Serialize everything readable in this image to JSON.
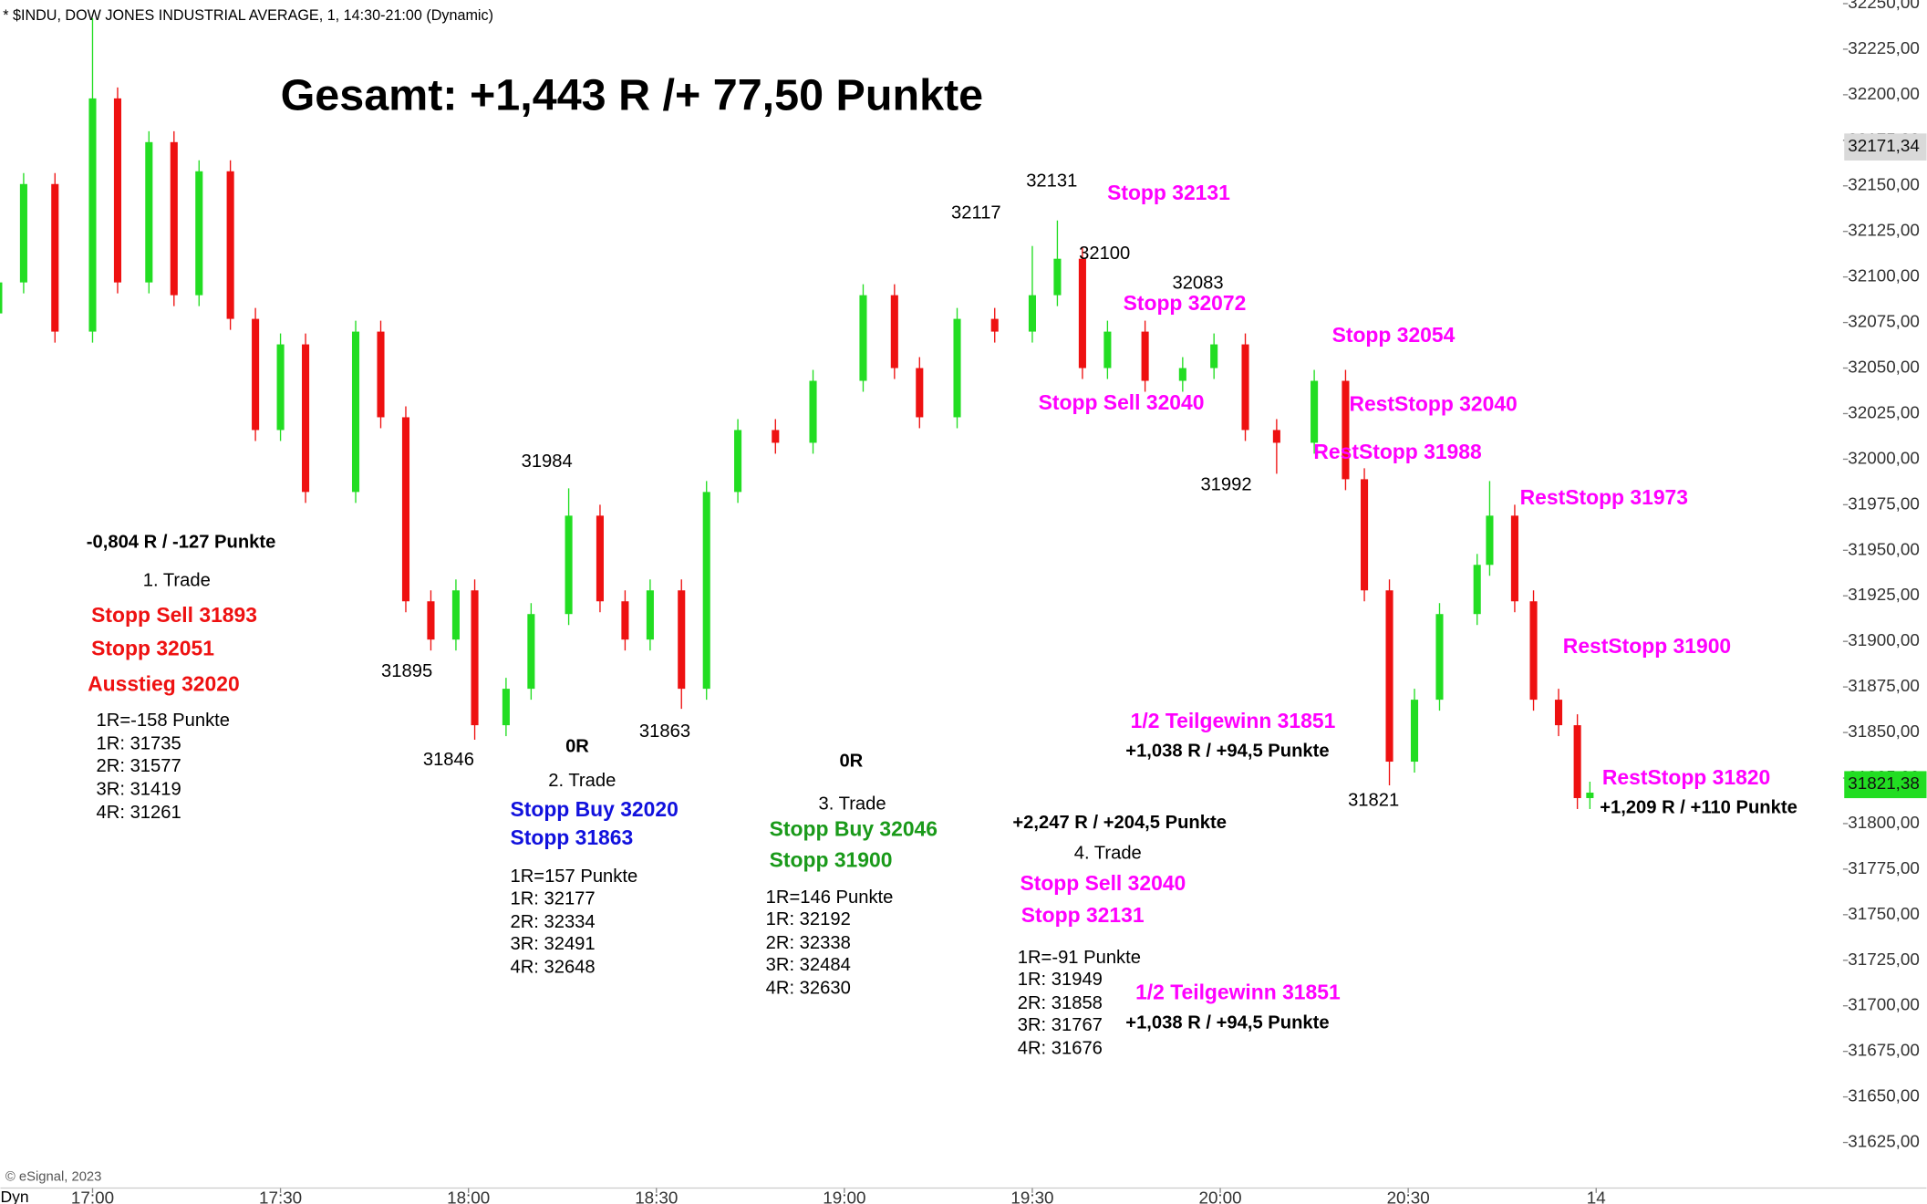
{
  "chart_data": {
    "type": "candlestick",
    "header": "* $INDU, DOW JONES INDUSTRIAL AVERAGE, 1, 14:30-21:00 (Dynamic)",
    "title": "Gesamt: +1,443 R /+ 77,50 Punkte",
    "up_color": "#22dd22",
    "down_color": "#ee1111",
    "x": [
      -15,
      -11,
      -6,
      0,
      4,
      9,
      13,
      17,
      22,
      26,
      30,
      34,
      42,
      46,
      50,
      54,
      58,
      61,
      66,
      70,
      76,
      81,
      85,
      89,
      94,
      98,
      103,
      109,
      115,
      123,
      128,
      132,
      138,
      144,
      150,
      154,
      158,
      162,
      168,
      174,
      179,
      184,
      189,
      195,
      200,
      203,
      207,
      211,
      215,
      221,
      223,
      227,
      230,
      234,
      237,
      239
    ],
    "open": [
      32080,
      32097,
      32151,
      32070,
      32198,
      32097,
      32174,
      32090,
      32158,
      32077,
      32016,
      32063,
      31982,
      32070,
      32023,
      31922,
      31901,
      31928,
      31854,
      31874,
      31915,
      31969,
      31922,
      31901,
      31928,
      31874,
      31982,
      32016,
      32009,
      32043,
      32090,
      32050,
      32023,
      32077,
      32070,
      32090,
      32110,
      32050,
      32070,
      32043,
      32050,
      32063,
      32016,
      32009,
      32043,
      31989,
      31928,
      31834,
      31868,
      31915,
      31942,
      31969,
      31922,
      31868,
      31854,
      31814
    ],
    "high": [
      32103,
      32157,
      32157,
      32242,
      32204,
      32180,
      32180,
      32164,
      32164,
      32083,
      32069,
      32069,
      32076,
      32076,
      32029,
      31928,
      31934,
      31934,
      31880,
      31921,
      31984,
      31975,
      31928,
      31934,
      31934,
      31988,
      32022,
      32022,
      32049,
      32096,
      32096,
      32056,
      32083,
      32083,
      32117,
      32131,
      32116,
      32076,
      32076,
      32056,
      32069,
      32069,
      32022,
      32049,
      32049,
      31995,
      31934,
      31874,
      31921,
      31948,
      31988,
      31975,
      31928,
      31874,
      31860,
      31823
    ],
    "low": [
      32074,
      32091,
      32064,
      32064,
      32091,
      32091,
      32084,
      32084,
      32071,
      32010,
      32010,
      31976,
      31976,
      32017,
      31916,
      31895,
      31895,
      31846,
      31848,
      31868,
      31909,
      31916,
      31895,
      31895,
      31863,
      31868,
      31976,
      32003,
      32003,
      32037,
      32044,
      32017,
      32017,
      32064,
      32064,
      32084,
      32044,
      32044,
      32037,
      32037,
      32044,
      32010,
      31992,
      32003,
      31983,
      31922,
      31821,
      31828,
      31862,
      31909,
      31936,
      31916,
      31862,
      31848,
      31808,
      31808
    ],
    "close": [
      32097,
      32151,
      32070,
      32198,
      32097,
      32174,
      32090,
      32158,
      32077,
      32016,
      32063,
      31982,
      32070,
      32023,
      31922,
      31901,
      31928,
      31854,
      31874,
      31915,
      31969,
      31922,
      31901,
      31928,
      31874,
      31982,
      32016,
      32009,
      32043,
      32090,
      32050,
      32023,
      32077,
      32070,
      32090,
      32110,
      32050,
      32070,
      32043,
      32050,
      32063,
      32016,
      32009,
      32043,
      31989,
      31928,
      31834,
      31868,
      31915,
      31942,
      31969,
      31922,
      31868,
      31854,
      31814,
      31817
    ],
    "xlim": [
      -14.7,
      279.4
    ],
    "xticks": [
      {
        "value": 0,
        "label": "17:00"
      },
      {
        "value": 30,
        "label": "17:30"
      },
      {
        "value": 60,
        "label": "18:00"
      },
      {
        "value": 90,
        "label": "18:30"
      },
      {
        "value": 120,
        "label": "19:00"
      },
      {
        "value": 150,
        "label": "19:30"
      },
      {
        "value": 180,
        "label": "20:00"
      },
      {
        "value": 210,
        "label": "20:30"
      },
      {
        "value": 240,
        "label": "14"
      }
    ],
    "ylim": [
      31600,
      32252
    ],
    "yticks": [
      {
        "value": 31625,
        "label": "31625,00"
      },
      {
        "value": 31650,
        "label": "31650,00"
      },
      {
        "value": 31675,
        "label": "31675,00"
      },
      {
        "value": 31700,
        "label": "31700,00"
      },
      {
        "value": 31725,
        "label": "31725,00"
      },
      {
        "value": 31750,
        "label": "31750,00"
      },
      {
        "value": 31775,
        "label": "31775,00"
      },
      {
        "value": 31800,
        "label": "31800,00"
      },
      {
        "value": 31825,
        "label": "31825,00"
      },
      {
        "value": 31850,
        "label": "31850,00"
      },
      {
        "value": 31875,
        "label": "31875,00"
      },
      {
        "value": 31900,
        "label": "31900,00"
      },
      {
        "value": 31925,
        "label": "31925,00"
      },
      {
        "value": 31950,
        "label": "31950,00"
      },
      {
        "value": 31975,
        "label": "31975,00"
      },
      {
        "value": 32000,
        "label": "32000,00"
      },
      {
        "value": 32025,
        "label": "32025,00"
      },
      {
        "value": 32050,
        "label": "32050,00"
      },
      {
        "value": 32075,
        "label": "32075,00"
      },
      {
        "value": 32100,
        "label": "32100,00"
      },
      {
        "value": 32125,
        "label": "32125,00"
      },
      {
        "value": 32150,
        "label": "32150,00"
      },
      {
        "value": 32175,
        "label": "32175,00"
      },
      {
        "value": 32200,
        "label": "32200,00"
      },
      {
        "value": 32225,
        "label": "32225,00"
      },
      {
        "value": 32250,
        "label": "32250,00"
      }
    ],
    "price_markers": [
      {
        "value": 32171.34,
        "label": "32171,34",
        "color": "#d9d9d9"
      },
      {
        "value": 31821.38,
        "label": "31821,38",
        "color": "#22dd22"
      }
    ],
    "annotations": [
      "-0,804 R / -127 Punkte",
      "1. Trade",
      "Stopp  Sell 31893",
      "Stopp  32051",
      "Ausstieg  32020",
      "1R=-158 Punkte",
      "1R: 31735",
      "2R: 31577",
      "3R: 31419",
      "4R: 31261",
      "31895",
      "31846",
      "31984",
      "0R",
      "2. Trade",
      "Stopp Buy 32020",
      "Stopp 31863",
      "1R=157 Punkte",
      "1R: 32177",
      "2R: 32334",
      "3R: 32491",
      "4R: 32648",
      "31863",
      "0R",
      "3. Trade",
      "Stopp Buy 32046",
      "Stopp 31900",
      "1R=146 Punkte",
      "1R: 32192",
      "2R: 32338",
      "3R: 32484",
      "4R: 32630",
      "32117",
      "32131",
      "Stopp 32131",
      "32100",
      "32083",
      "Stopp 32072",
      "Stopp 32054",
      "Stopp  Sell 32040",
      "RestStopp 32040",
      "RestStopp 31988",
      "31992",
      "RestStopp 31973",
      "RestStopp 31900",
      "1/2 Teilgewinn 31851",
      "+1,038 R / +94,5 Punkte",
      "31821",
      "RestStopp 31820",
      "+1,209 R / +110 Punkte",
      "+2,247 R / +204,5 Punkte",
      "4. Trade",
      "Stopp  Sell 32040",
      "Stopp 32131",
      "1R=-91 Punkte",
      "1R: 31949",
      "2R: 31858",
      "3R: 31767",
      "4R: 31676",
      "1/2 Teilgewinn 31851",
      "+1,038 R / +94,5 Punkte"
    ],
    "footer": "© eSignal, 2023",
    "mode_label": "Dyn"
  }
}
